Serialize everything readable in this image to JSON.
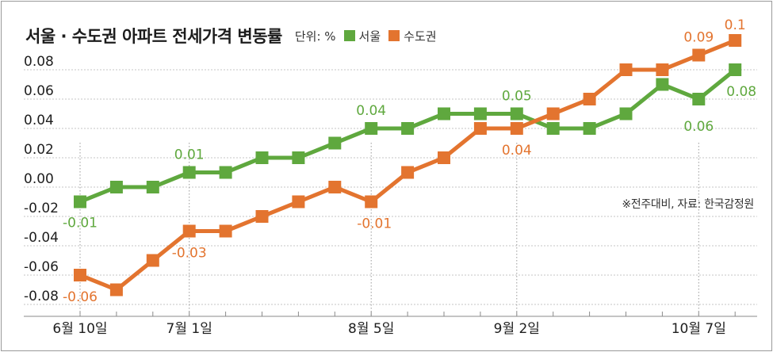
{
  "chart_data": {
    "type": "line",
    "title": "서울 · 수도권 아파트 전세가격 변동률",
    "unit_label": "단위: %",
    "note": "※전주대비, 자료: 한국감정원",
    "ylim": [
      -0.08,
      0.08
    ],
    "y_ticks": [
      "0.08",
      "0.06",
      "0.04",
      "0.02",
      "0.00",
      "-0.02",
      "-0.04",
      "-0.06",
      "-0.08"
    ],
    "y_tick_values": [
      0.08,
      0.06,
      0.04,
      0.02,
      0.0,
      -0.02,
      -0.04,
      -0.06,
      -0.08
    ],
    "x_labels": [
      {
        "index": 0,
        "text": "6월 10일"
      },
      {
        "index": 3,
        "text": "7월 1일"
      },
      {
        "index": 8,
        "text": "8월 5일"
      },
      {
        "index": 12,
        "text": "9월 2일"
      },
      {
        "index": 17,
        "text": "10월 7일"
      }
    ],
    "grid": "horizontal dashed",
    "legend_position": "top",
    "series": [
      {
        "name": "서울",
        "color": "#5fa83e",
        "values": [
          -0.01,
          0.0,
          0.0,
          0.01,
          0.01,
          0.02,
          0.02,
          0.03,
          0.04,
          0.04,
          0.05,
          0.05,
          0.05,
          0.04,
          0.04,
          0.05,
          0.07,
          0.06,
          0.08
        ],
        "labels": [
          {
            "index": 0,
            "text": "-0.01"
          },
          {
            "index": 3,
            "text": "0.01"
          },
          {
            "index": 8,
            "text": "0.04"
          },
          {
            "index": 12,
            "text": "0.05"
          },
          {
            "index": 17,
            "text": "0.06"
          },
          {
            "index": 18,
            "text": "0.08"
          }
        ]
      },
      {
        "name": "수도권",
        "color": "#e3742f",
        "values": [
          -0.06,
          -0.07,
          -0.05,
          -0.03,
          -0.03,
          -0.02,
          -0.01,
          0.0,
          -0.01,
          0.01,
          0.02,
          0.04,
          0.04,
          0.05,
          0.06,
          0.08,
          0.08,
          0.09,
          0.1
        ],
        "labels": [
          {
            "index": 0,
            "text": "-0.06"
          },
          {
            "index": 3,
            "text": "-0.03"
          },
          {
            "index": 8,
            "text": "-0.01"
          },
          {
            "index": 12,
            "text": "0.04"
          },
          {
            "index": 17,
            "text": "0.09"
          },
          {
            "index": 18,
            "text": "0.1"
          }
        ]
      }
    ]
  }
}
